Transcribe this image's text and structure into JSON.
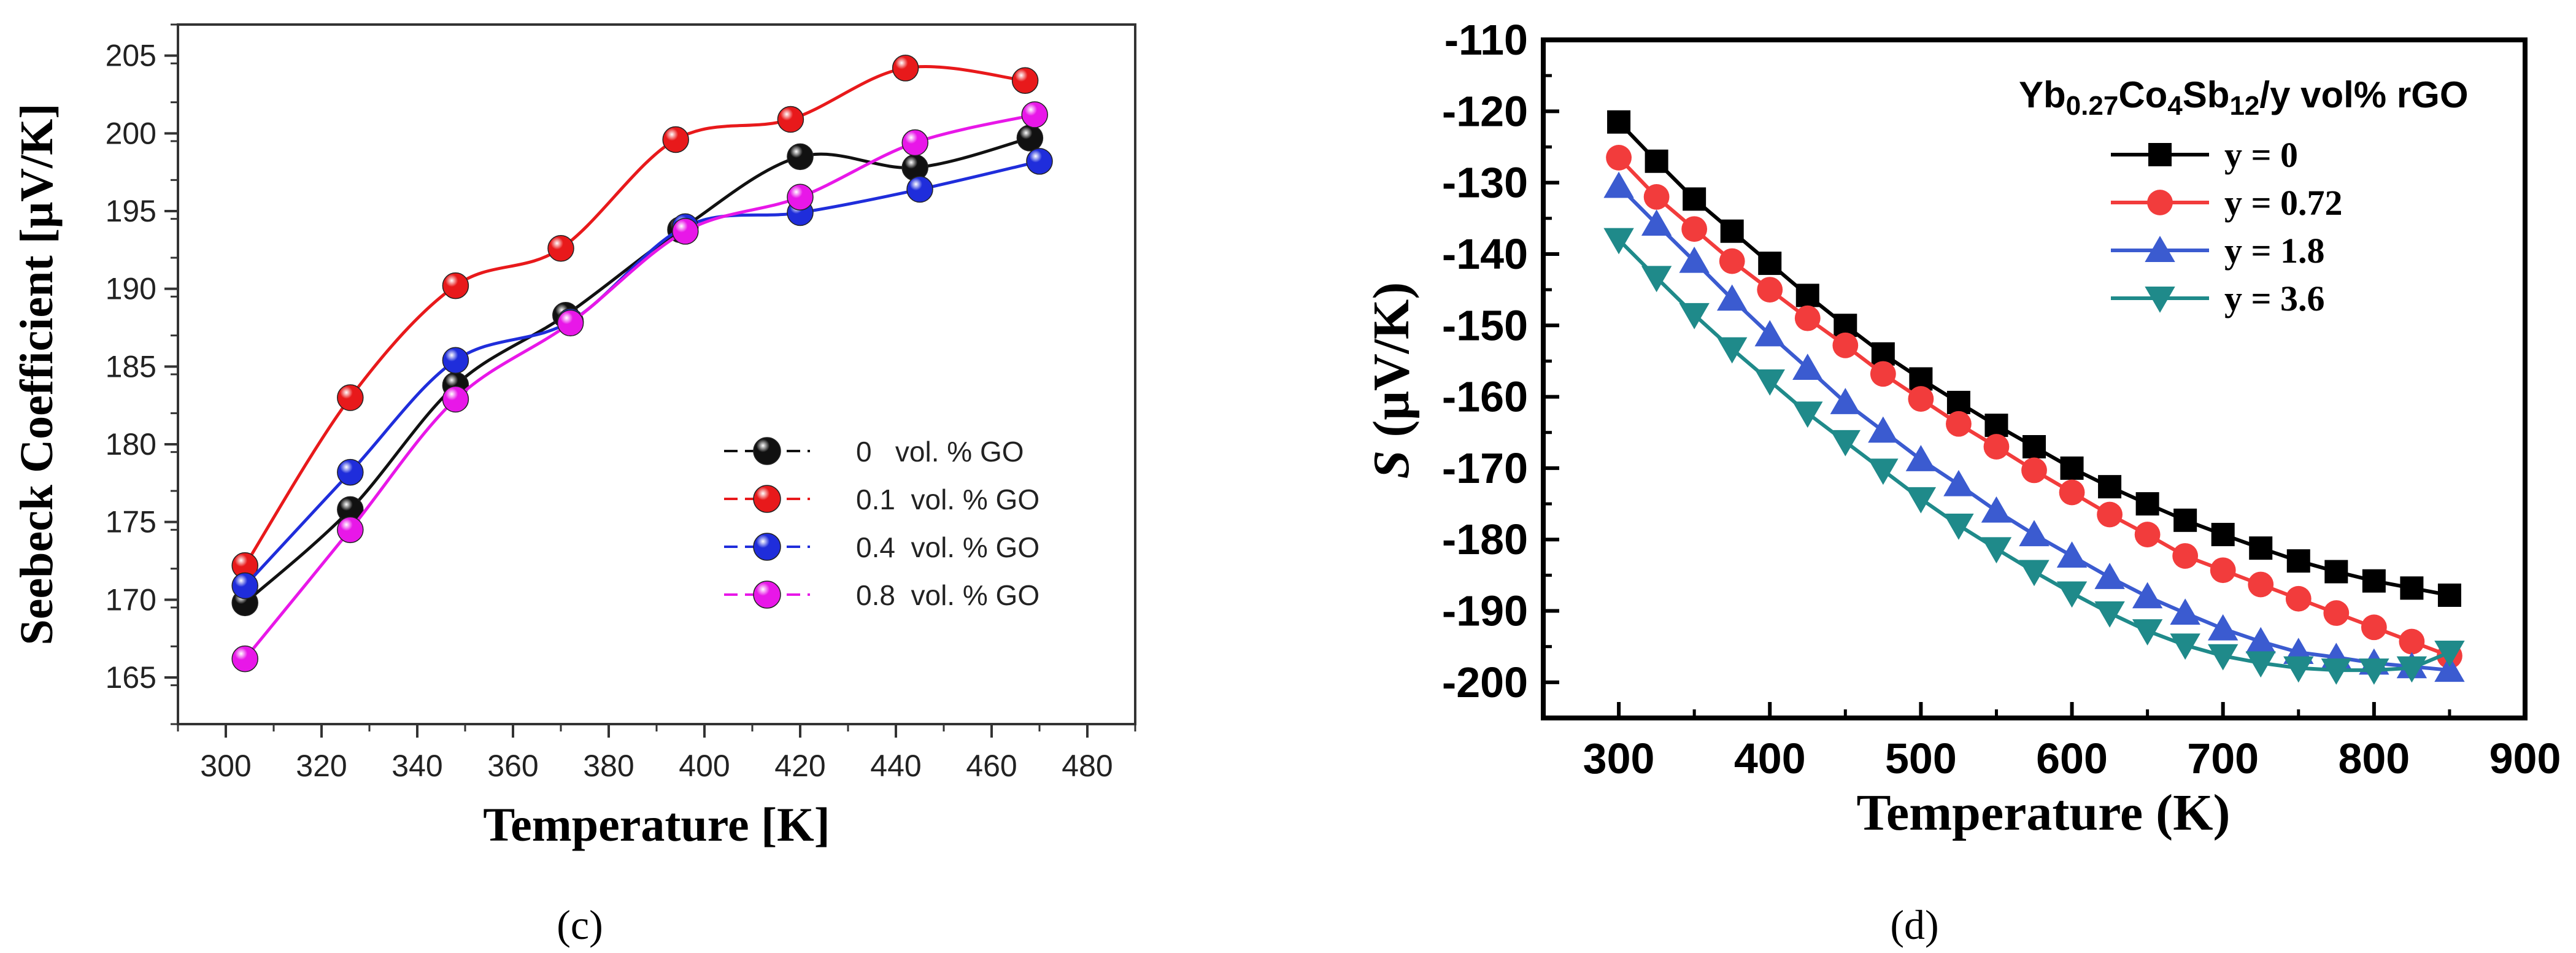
{
  "chart_data": [
    {
      "panel": "c",
      "type": "line",
      "title": "",
      "xlabel": "Temperature [K]",
      "ylabel": "Seebeck Coefficient [μV/K]",
      "xlim": [
        290,
        490
      ],
      "ylim": [
        162,
        207
      ],
      "xticks": [
        300,
        320,
        340,
        360,
        380,
        400,
        420,
        440,
        460,
        480
      ],
      "yticks": [
        165,
        170,
        175,
        180,
        185,
        190,
        195,
        200,
        205
      ],
      "legend_position": "lower-right",
      "series": [
        {
          "name": "0   vol. % GO",
          "color": "#111111",
          "x": [
            304,
            326,
            348,
            371,
            395,
            420,
            444,
            468
          ],
          "y": [
            169.8,
            175.8,
            183.8,
            188.3,
            193.8,
            198.5,
            197.8,
            199.7
          ]
        },
        {
          "name": "0.1  vol. % GO",
          "color": "#e8191b",
          "x": [
            304,
            326,
            348,
            370,
            394,
            418,
            442,
            467
          ],
          "y": [
            172.2,
            183.0,
            190.2,
            192.6,
            199.6,
            200.9,
            204.2,
            203.4
          ]
        },
        {
          "name": "0.4  vol. % GO",
          "color": "#1f2ddb",
          "x": [
            304,
            326,
            348,
            372,
            396,
            420,
            445,
            470
          ],
          "y": [
            170.9,
            178.2,
            185.4,
            187.9,
            194.0,
            194.9,
            196.4,
            198.2
          ]
        },
        {
          "name": "0.8  vol. % GO",
          "color": "#e817e8",
          "x": [
            304,
            326,
            348,
            372,
            396,
            420,
            444,
            469
          ],
          "y": [
            166.2,
            174.5,
            182.9,
            187.8,
            193.7,
            195.9,
            199.4,
            201.2
          ]
        }
      ],
      "caption": "(c)"
    },
    {
      "panel": "d",
      "type": "line",
      "title": "Yb0.27Co4Sb12/y vol% rGO",
      "title_parts": {
        "a": "Yb",
        "b": "0.27",
        "c": "Co",
        "d": "4",
        "e": "Sb",
        "f": "12",
        "g": "/y vol% rGO"
      },
      "xlabel": "Temperature (K)",
      "ylabel_symbol": "S",
      "ylabel_unit": " (μV/K)",
      "xlim": [
        250,
        900
      ],
      "ylim": [
        -205,
        -110
      ],
      "xticks": [
        300,
        400,
        500,
        600,
        700,
        800,
        900
      ],
      "yticks": [
        -110,
        -120,
        -130,
        -140,
        -150,
        -160,
        -170,
        -180,
        -190,
        -200
      ],
      "legend_position": "upper-right",
      "x": [
        300,
        325,
        350,
        375,
        400,
        425,
        450,
        475,
        500,
        525,
        550,
        575,
        600,
        625,
        650,
        675,
        700,
        725,
        750,
        775,
        800,
        825,
        850
      ],
      "series": [
        {
          "name": "y = 0",
          "color": "#000000",
          "marker": "square",
          "y": [
            -121.5,
            -127,
            -132.3,
            -136.8,
            -141.3,
            -145.8,
            -150,
            -154,
            -157.5,
            -160.8,
            -164,
            -167,
            -170,
            -172.6,
            -175,
            -177.3,
            -179.3,
            -181.2,
            -183,
            -184.5,
            -185.8,
            -186.8,
            -187.8
          ]
        },
        {
          "name": "y = 0.72",
          "color": "#f23c3c",
          "marker": "circle",
          "y": [
            -126.5,
            -132,
            -136.5,
            -141,
            -145,
            -149,
            -152.8,
            -156.8,
            -160.3,
            -163.8,
            -167,
            -170.3,
            -173.4,
            -176.5,
            -179.3,
            -182.3,
            -184.3,
            -186.3,
            -188.3,
            -190.3,
            -192.3,
            -194.3,
            -196.3
          ]
        },
        {
          "name": "y = 1.8",
          "color": "#3b5bd0",
          "marker": "triangle-up",
          "y": [
            -130.5,
            -135.8,
            -141,
            -146.3,
            -151.3,
            -156,
            -160.8,
            -164.8,
            -168.8,
            -172.3,
            -176,
            -179.3,
            -182.3,
            -185.3,
            -188,
            -190.3,
            -192.5,
            -194.3,
            -195.8,
            -196.5,
            -197.3,
            -197.8,
            -198.3
          ]
        },
        {
          "name": "y = 3.6",
          "color": "#1f8a8a",
          "marker": "triangle-down",
          "y": [
            -138,
            -143.3,
            -148.5,
            -153.3,
            -157.8,
            -162.3,
            -166.3,
            -170.3,
            -174.3,
            -178,
            -181.3,
            -184.5,
            -187.5,
            -190.3,
            -192.8,
            -194.8,
            -196.3,
            -197.3,
            -198,
            -198.3,
            -198.3,
            -198,
            -195.8
          ]
        }
      ],
      "caption": "(d)"
    }
  ]
}
